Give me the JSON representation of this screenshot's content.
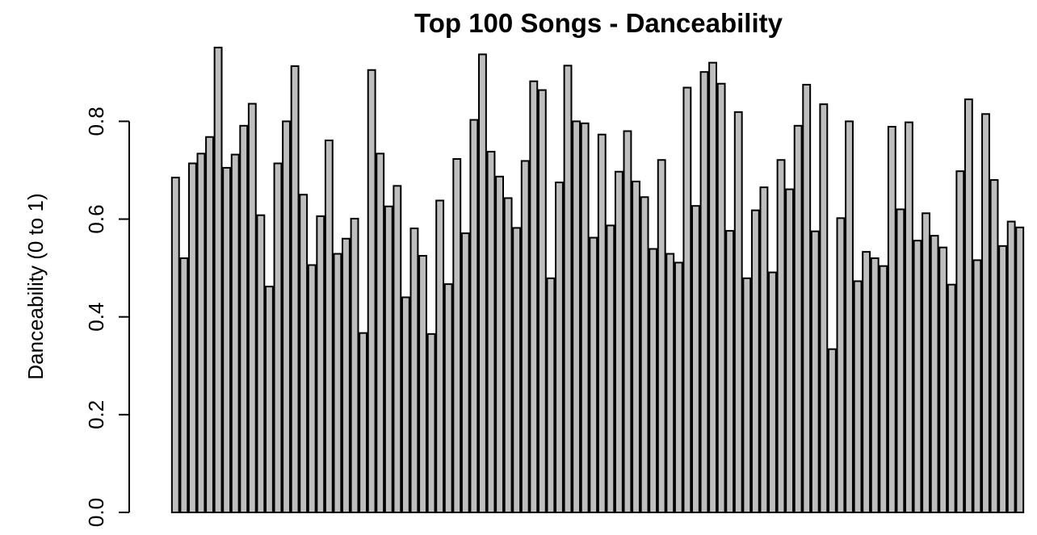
{
  "chart_data": {
    "type": "bar",
    "title": "Top 100 Songs - Danceability",
    "xlabel": "",
    "ylabel": "Danceability (0 to 1)",
    "ylim": [
      0,
      0.95
    ],
    "yticks": [
      {
        "value": 0.0,
        "label": "0.0"
      },
      {
        "value": 0.2,
        "label": "0.2"
      },
      {
        "value": 0.4,
        "label": "0.4"
      },
      {
        "value": 0.6,
        "label": "0.6"
      },
      {
        "value": 0.8,
        "label": "0.8"
      }
    ],
    "grid": false,
    "bar_color": "#bebebe",
    "bar_border_color": "#000000",
    "values": [
      0.685,
      0.52,
      0.714,
      0.734,
      0.768,
      0.951,
      0.705,
      0.732,
      0.791,
      0.836,
      0.608,
      0.462,
      0.714,
      0.8,
      0.913,
      0.65,
      0.506,
      0.606,
      0.761,
      0.529,
      0.56,
      0.601,
      0.367,
      0.905,
      0.734,
      0.626,
      0.668,
      0.44,
      0.581,
      0.525,
      0.365,
      0.638,
      0.467,
      0.723,
      0.571,
      0.803,
      0.937,
      0.738,
      0.687,
      0.643,
      0.582,
      0.719,
      0.882,
      0.864,
      0.479,
      0.675,
      0.914,
      0.8,
      0.796,
      0.562,
      0.773,
      0.587,
      0.697,
      0.78,
      0.677,
      0.645,
      0.539,
      0.721,
      0.529,
      0.511,
      0.869,
      0.627,
      0.901,
      0.92,
      0.877,
      0.576,
      0.819,
      0.479,
      0.618,
      0.665,
      0.491,
      0.721,
      0.661,
      0.791,
      0.875,
      0.575,
      0.835,
      0.334,
      0.602,
      0.8,
      0.473,
      0.533,
      0.52,
      0.504,
      0.789,
      0.62,
      0.798,
      0.556,
      0.612,
      0.566,
      0.542,
      0.466,
      0.698,
      0.845,
      0.516,
      0.815,
      0.68,
      0.545,
      0.595,
      0.583
    ]
  }
}
